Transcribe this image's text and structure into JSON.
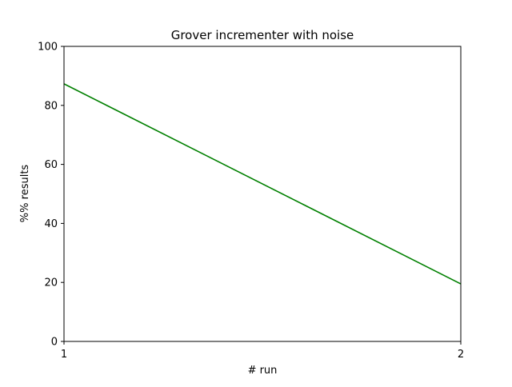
{
  "chart_data": {
    "type": "line",
    "title": "Grover incrementer with noise",
    "xlabel": "# run",
    "ylabel": "%% results",
    "xlim": [
      1,
      2
    ],
    "ylim": [
      0,
      100
    ],
    "xticks": [
      "1",
      "2"
    ],
    "yticks": [
      "0",
      "20",
      "40",
      "60",
      "80",
      "100"
    ],
    "grid": false,
    "series": [
      {
        "x": [
          1,
          2
        ],
        "values": [
          87.3,
          19.5
        ],
        "color": "#008000"
      }
    ]
  }
}
